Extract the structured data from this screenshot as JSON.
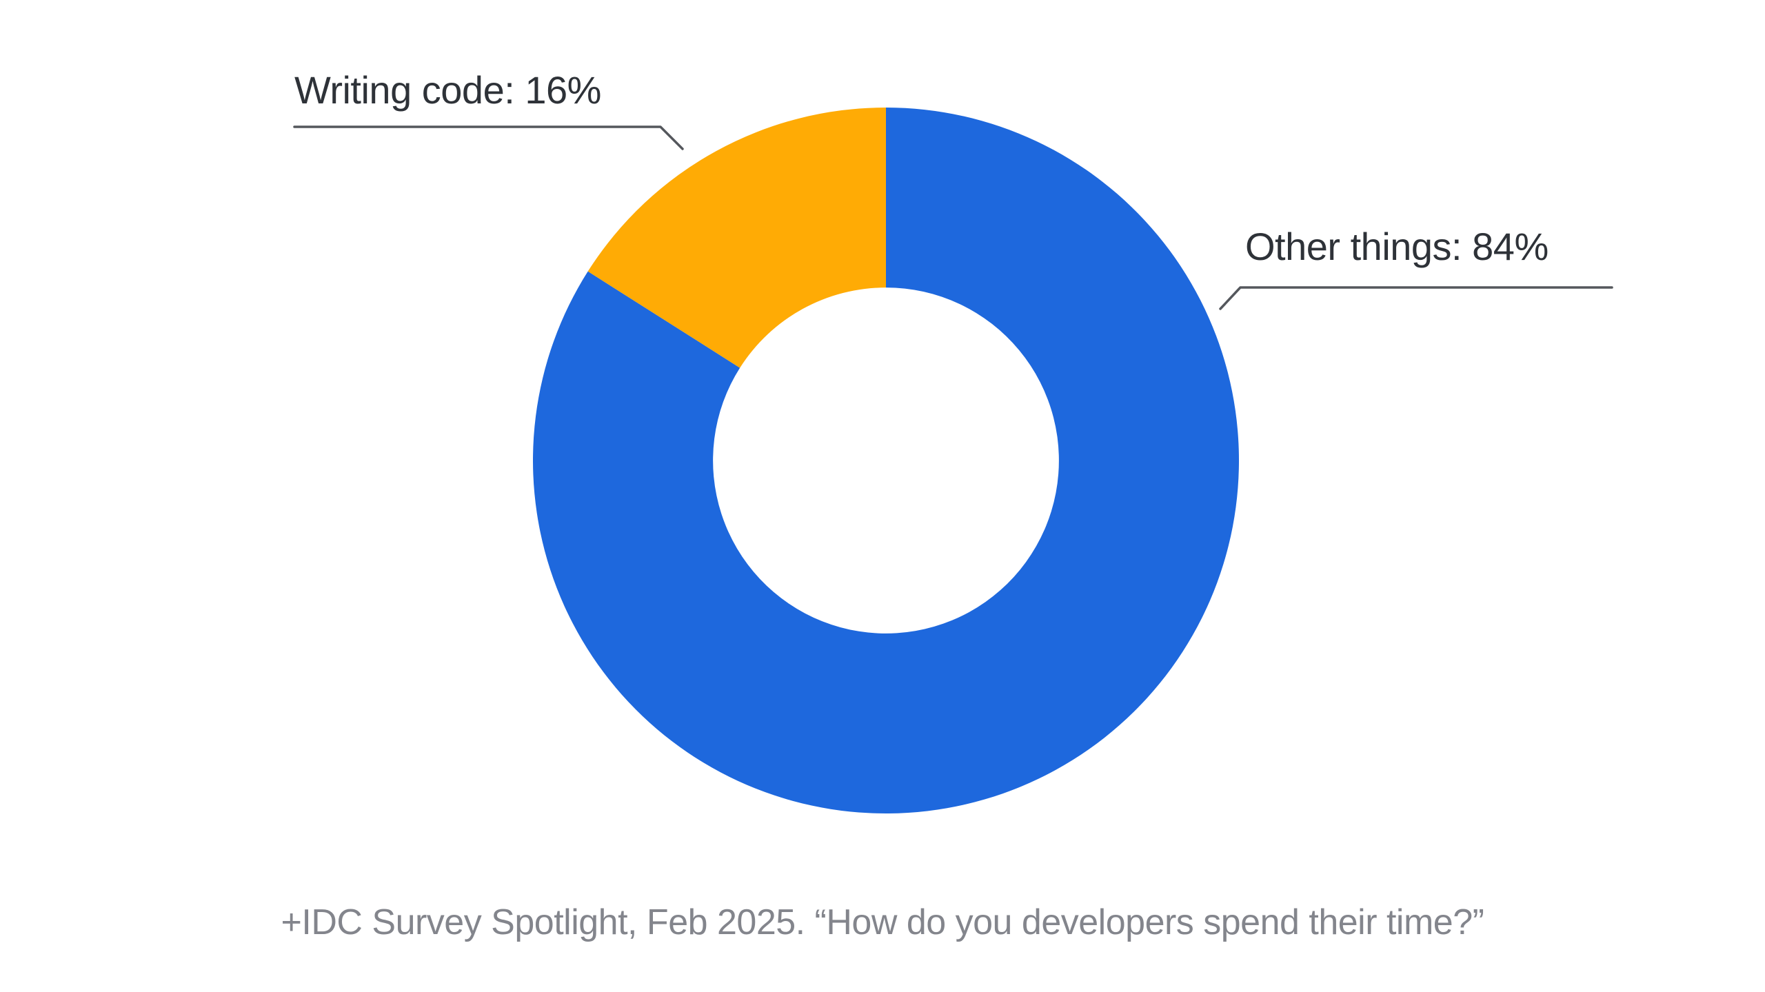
{
  "chart_data": {
    "type": "pie",
    "subtype": "donut",
    "title": "",
    "labels": [
      "Other things",
      "Writing code"
    ],
    "values": [
      84,
      16
    ],
    "unit": "%",
    "colors": [
      "#1e68dd",
      "#ffab05"
    ],
    "start_angle_deg_from_top": 0,
    "direction": "clockwise",
    "inner_radius_ratio": 0.49,
    "legend_position": "none",
    "callouts": [
      {
        "slice": "Writing code",
        "label": "Writing code: 16%",
        "position": "top-left"
      },
      {
        "slice": "Other things",
        "label": "Other things: 84%",
        "position": "right"
      }
    ]
  },
  "annotations": {
    "writing_code_label": "Writing code: 16%",
    "other_things_label": "Other things: 84%"
  },
  "caption": {
    "text": "+IDC Survey Spotlight, Feb 2025. “How do you developers spend their time?”"
  },
  "colors": {
    "slice_other_things": "#1e68dd",
    "slice_writing_code": "#ffab05",
    "label_text": "#2e3238",
    "caption_text": "#83858c",
    "leader_line": "#54575c",
    "background": "#ffffff"
  }
}
